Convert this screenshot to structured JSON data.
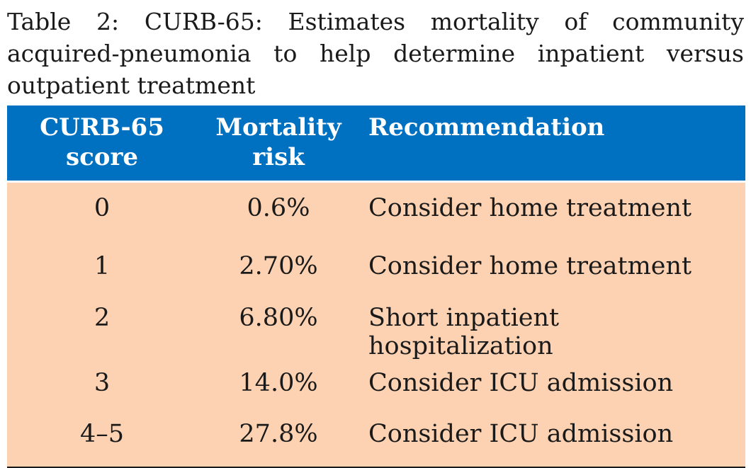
{
  "caption": "Table 2: CURB-65: Estimates mortality of community acquired-pneumonia to help determine inpatient versus outpatient treatment",
  "table": {
    "headers": {
      "score_line1": "CURB-65",
      "score_line2": "score",
      "mortality_line1": "Mortality",
      "mortality_line2": "risk",
      "recommendation": "Recommendation"
    },
    "rows": [
      {
        "score": "0",
        "mortality": "0.6%",
        "recommendation": "Consider home treatment"
      },
      {
        "score": "1",
        "mortality": "2.70%",
        "recommendation": "Consider home treatment"
      },
      {
        "score": "2",
        "mortality": "6.80%",
        "recommendation": "Short inpatient hospitalization"
      },
      {
        "score": "3",
        "mortality": "14.0%",
        "recommendation": "Consider ICU admission"
      },
      {
        "score": "4–5",
        "mortality": "27.8%",
        "recommendation": "Consider ICU admission"
      }
    ]
  },
  "colors": {
    "header_bg": "#0070c0",
    "body_bg": "#fdd2b2",
    "header_text": "#ffffff"
  }
}
